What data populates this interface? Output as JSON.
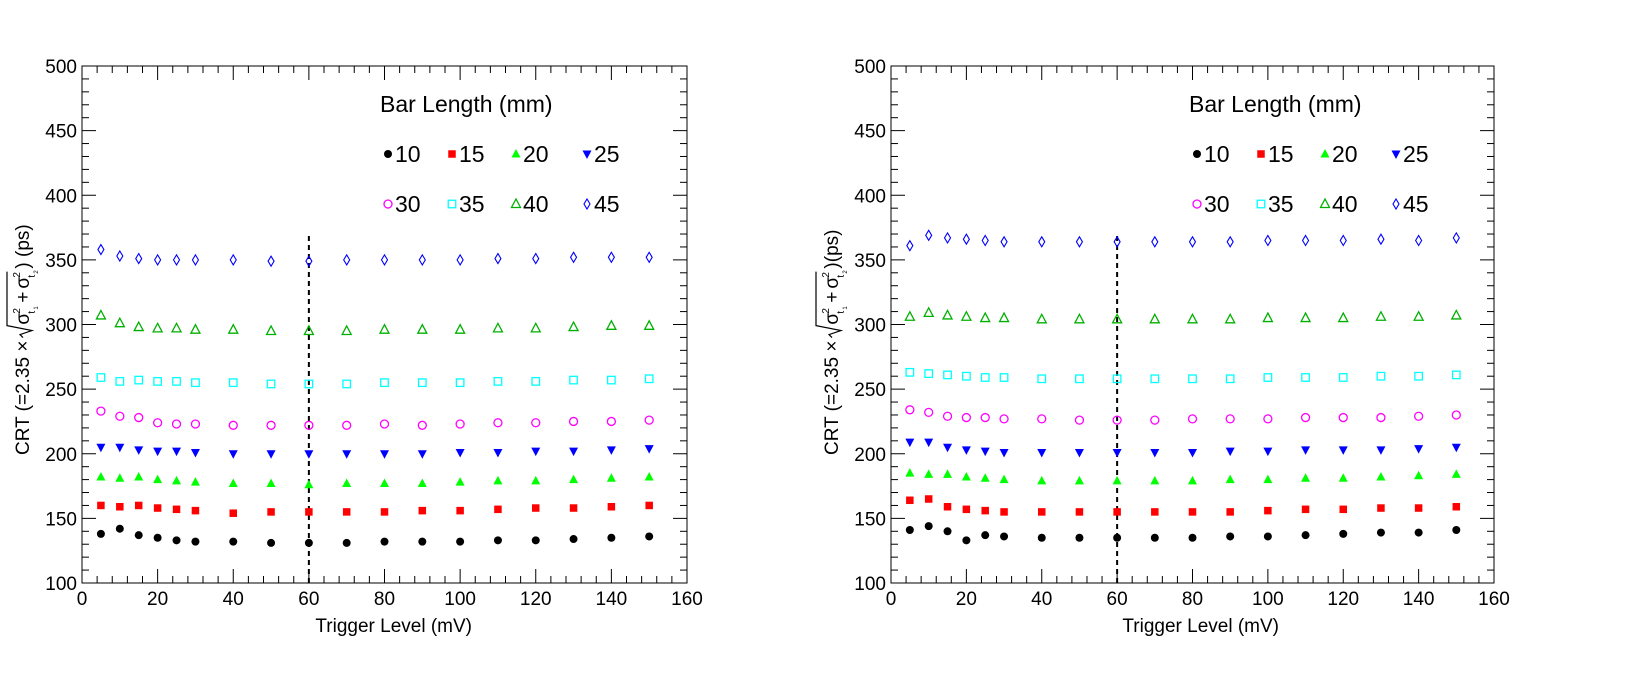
{
  "chart_data": [
    {
      "type": "scatter",
      "x": [
        5,
        10,
        15,
        20,
        25,
        30,
        40,
        50,
        60,
        70,
        80,
        90,
        100,
        110,
        120,
        130,
        140,
        150
      ],
      "xlabel": "Trigger Level (mV)",
      "ylabel": {
        "prefix": "CRT (=2.35 ×",
        "sigma": "σ",
        "sup": "2",
        "sub1": "t",
        "sub2": "t",
        "subsub1": "1",
        "subsub2": "2",
        "plus": "+",
        "suffix": ") (ps)"
      },
      "xlim": [
        0,
        160
      ],
      "ylim": [
        100,
        500
      ],
      "xticks": [
        "0",
        "20",
        "40",
        "60",
        "80",
        "100",
        "120",
        "140",
        "160"
      ],
      "yticks": [
        "100",
        "150",
        "200",
        "250",
        "300",
        "350",
        "400",
        "450",
        "500"
      ],
      "vline_x": 60,
      "legend_title": "Bar Length (mm)",
      "series": [
        {
          "name": "10",
          "marker": "circle-filled",
          "color": "#000000",
          "values": [
            138,
            142,
            137,
            135,
            133,
            132,
            132,
            131,
            131,
            131,
            132,
            132,
            132,
            133,
            133,
            134,
            135,
            136
          ]
        },
        {
          "name": "15",
          "marker": "square-filled",
          "color": "#ff0000",
          "values": [
            160,
            159,
            160,
            158,
            157,
            156,
            154,
            155,
            155,
            155,
            155,
            156,
            156,
            157,
            158,
            158,
            159,
            160
          ]
        },
        {
          "name": "20",
          "marker": "triangle-up-filled",
          "color": "#00ff00",
          "values": [
            182,
            181,
            182,
            180,
            179,
            178,
            177,
            177,
            176,
            177,
            177,
            177,
            178,
            179,
            179,
            180,
            181,
            182
          ]
        },
        {
          "name": "25",
          "marker": "triangle-down-filled",
          "color": "#0000ff",
          "values": [
            205,
            205,
            203,
            202,
            202,
            201,
            200,
            200,
            200,
            200,
            200,
            200,
            201,
            201,
            202,
            202,
            203,
            204
          ]
        },
        {
          "name": "30",
          "marker": "circle-open",
          "color": "#ff00ff",
          "values": [
            233,
            229,
            228,
            224,
            223,
            223,
            222,
            222,
            222,
            222,
            223,
            222,
            223,
            224,
            224,
            225,
            225,
            226
          ]
        },
        {
          "name": "35",
          "marker": "square-open",
          "color": "#00ffff",
          "values": [
            259,
            256,
            257,
            256,
            256,
            255,
            255,
            254,
            254,
            254,
            255,
            255,
            255,
            256,
            256,
            257,
            257,
            258
          ]
        },
        {
          "name": "40",
          "marker": "triangle-up-open",
          "color": "#00b000",
          "values": [
            307,
            301,
            298,
            297,
            297,
            296,
            296,
            295,
            295,
            295,
            296,
            296,
            296,
            297,
            297,
            298,
            299,
            299
          ]
        },
        {
          "name": "45",
          "marker": "diamond-open",
          "color": "#0000ff",
          "values": [
            358,
            353,
            351,
            350,
            350,
            350,
            350,
            349,
            349,
            350,
            350,
            350,
            350,
            351,
            351,
            352,
            352,
            352
          ]
        }
      ]
    },
    {
      "type": "scatter",
      "x": [
        5,
        10,
        15,
        20,
        25,
        30,
        40,
        50,
        60,
        70,
        80,
        90,
        100,
        110,
        120,
        130,
        140,
        150
      ],
      "xlabel": "Trigger Level (mV)",
      "ylabel": {
        "prefix": "CRT (=2.35 ×",
        "sigma": "σ",
        "sup": "2",
        "sub1": "t",
        "sub2": "t",
        "subsub1": "1",
        "subsub2": "2",
        "plus": "+",
        "suffix": ")(ps)"
      },
      "xlim": [
        0,
        160
      ],
      "ylim": [
        100,
        500
      ],
      "xticks": [
        "0",
        "20",
        "40",
        "60",
        "80",
        "100",
        "120",
        "140",
        "160"
      ],
      "yticks": [
        "100",
        "150",
        "200",
        "250",
        "300",
        "350",
        "400",
        "450",
        "500"
      ],
      "vline_x": 60,
      "legend_title": "Bar Length (mm)",
      "series": [
        {
          "name": "10",
          "marker": "circle-filled",
          "color": "#000000",
          "values": [
            141,
            144,
            140,
            133,
            137,
            136,
            135,
            135,
            135,
            135,
            135,
            136,
            136,
            137,
            138,
            139,
            139,
            141
          ]
        },
        {
          "name": "15",
          "marker": "square-filled",
          "color": "#ff0000",
          "values": [
            164,
            165,
            159,
            157,
            156,
            155,
            155,
            155,
            155,
            155,
            155,
            155,
            156,
            157,
            157,
            158,
            158,
            159
          ]
        },
        {
          "name": "20",
          "marker": "triangle-up-filled",
          "color": "#00ff00",
          "values": [
            185,
            184,
            184,
            182,
            181,
            180,
            179,
            179,
            179,
            179,
            179,
            180,
            180,
            181,
            181,
            182,
            183,
            184
          ]
        },
        {
          "name": "25",
          "marker": "triangle-down-filled",
          "color": "#0000ff",
          "values": [
            209,
            209,
            205,
            203,
            202,
            201,
            201,
            201,
            201,
            201,
            201,
            202,
            202,
            203,
            203,
            203,
            204,
            205
          ]
        },
        {
          "name": "30",
          "marker": "circle-open",
          "color": "#ff00ff",
          "values": [
            234,
            232,
            229,
            228,
            228,
            227,
            227,
            226,
            226,
            226,
            227,
            227,
            227,
            228,
            228,
            228,
            229,
            230
          ]
        },
        {
          "name": "35",
          "marker": "square-open",
          "color": "#00ffff",
          "values": [
            263,
            262,
            261,
            260,
            259,
            259,
            258,
            258,
            258,
            258,
            258,
            258,
            259,
            259,
            259,
            260,
            260,
            261
          ]
        },
        {
          "name": "40",
          "marker": "triangle-up-open",
          "color": "#00b000",
          "values": [
            306,
            309,
            307,
            306,
            305,
            305,
            304,
            304,
            304,
            304,
            304,
            304,
            305,
            305,
            305,
            306,
            306,
            307
          ]
        },
        {
          "name": "45",
          "marker": "diamond-open",
          "color": "#0000ff",
          "values": [
            361,
            369,
            367,
            366,
            365,
            364,
            364,
            364,
            364,
            364,
            364,
            364,
            365,
            365,
            365,
            366,
            365,
            367
          ]
        }
      ]
    }
  ]
}
